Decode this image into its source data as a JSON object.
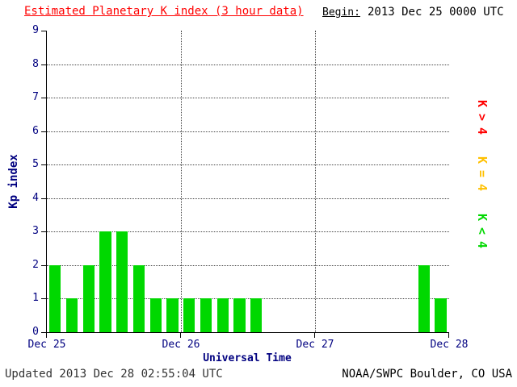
{
  "header": {
    "title": "Estimated Planetary K index (3 hour data)",
    "begin_label": "Begin:",
    "begin_value": "2013 Dec 25 0000 UTC"
  },
  "legend": [
    {
      "label": "K>4",
      "color": "#ff0000"
    },
    {
      "label": "K=4",
      "color": "#ffc000"
    },
    {
      "label": "K<4",
      "color": "#00d800"
    }
  ],
  "footer": {
    "updated": "Updated 2013 Dec 28 02:55:04 UTC",
    "source": "NOAA/SWPC Boulder, CO USA"
  },
  "colors": {
    "title": "#ff0000",
    "axis_text": "#000080",
    "bar_below_4": "#00d800",
    "bar_equal_4": "#ffc000",
    "bar_above_4": "#ff0000"
  },
  "chart_data": {
    "type": "bar",
    "title": "Estimated Planetary K index (3 hour data)",
    "xlabel": "Universal Time",
    "ylabel": "Kp index",
    "ylim": [
      0,
      9
    ],
    "y_ticks": [
      0,
      1,
      2,
      3,
      4,
      5,
      6,
      7,
      8,
      9
    ],
    "x_ticks": [
      "Dec 25",
      "Dec 26",
      "Dec 27",
      "Dec 28"
    ],
    "bars_per_day": 8,
    "interval_hours": 3,
    "values": [
      2,
      1,
      2,
      3,
      3,
      2,
      1,
      1,
      1,
      1,
      1,
      1,
      1,
      0,
      0,
      0,
      0,
      0,
      0,
      0,
      0,
      0,
      2,
      1
    ],
    "grid": "dotted",
    "legend_position": "right"
  }
}
